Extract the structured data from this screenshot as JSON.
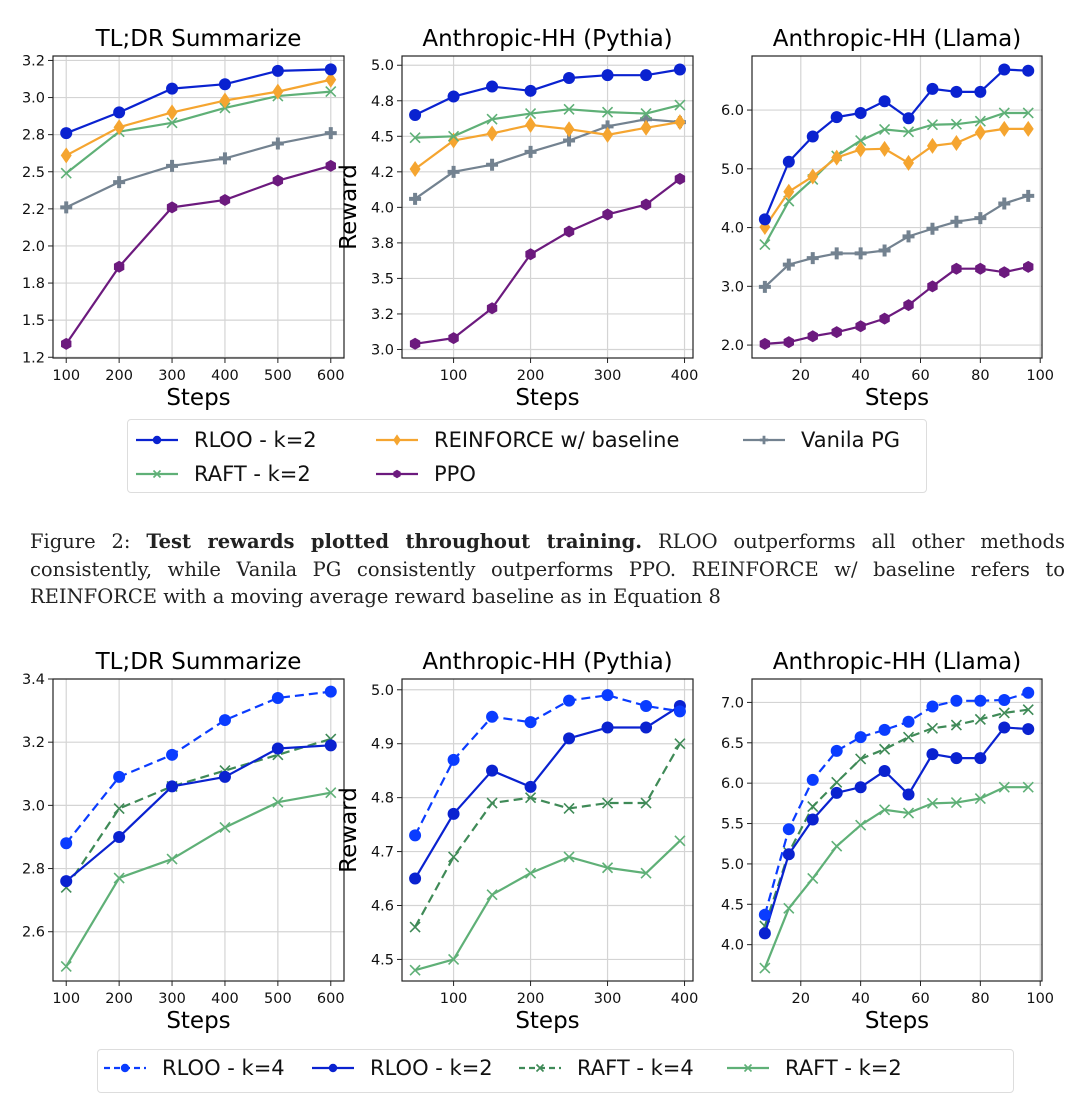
{
  "figure": {
    "caption_label": "Figure 2:",
    "caption_bold": "Test rewards plotted throughout training.",
    "caption_text": "RLOO outperforms all other methods consistently, while Vanila PG consistently outperforms PPO. REINFORCE w/ baseline refers to REINFORCE with a moving average reward baseline as in Equation 8"
  },
  "series_styles": {
    "RLOO - k=2": {
      "color": "#0a22d0",
      "marker": "circle",
      "dash": false
    },
    "REINFORCE w/ baseline": {
      "color": "#f5a530",
      "marker": "diamond",
      "dash": false
    },
    "Vanila PG": {
      "color": "#738290",
      "marker": "plus",
      "dash": false
    },
    "RAFT - k=2": {
      "color": "#5fb077",
      "marker": "x",
      "dash": false
    },
    "PPO": {
      "color": "#6c1a7e",
      "marker": "pentagon",
      "dash": false
    },
    "RLOO - k=4": {
      "color": "#0a3cff",
      "marker": "circle",
      "dash": true
    },
    "RAFT - k=4": {
      "color": "#3f8a57",
      "marker": "x",
      "dash": true
    }
  },
  "legends": [
    {
      "items": [
        "RLOO - k=2",
        "REINFORCE w/ baseline",
        "Vanila PG",
        "RAFT - k=2",
        "PPO"
      ]
    },
    {
      "items": [
        "RLOO - k=4",
        "RLOO - k=2",
        "RAFT - k=4",
        "RAFT - k=2"
      ]
    }
  ],
  "chart_data": [
    {
      "type": "line",
      "title": "TL;DR Summarize",
      "xlabel": "Steps",
      "ylabel": "",
      "xlim": [
        75,
        625
      ],
      "ylim": [
        1.245,
        3.28
      ],
      "grid": true,
      "xticks": [
        100,
        200,
        300,
        400,
        500,
        600
      ],
      "yticks": [
        1.25,
        1.5,
        1.75,
        2.0,
        2.25,
        2.5,
        2.75,
        3.0,
        3.25
      ],
      "ytick_labels": [
        "1.2",
        "1.5",
        "1.8",
        "2.0",
        "2.2",
        "2.5",
        "2.8",
        "3.0",
        "3.2"
      ],
      "x": [
        100,
        200,
        300,
        400,
        500,
        600
      ],
      "series": [
        {
          "name": "Vanila PG",
          "values": [
            2.26,
            2.43,
            2.54,
            2.59,
            2.69,
            2.76
          ]
        },
        {
          "name": "PPO",
          "values": [
            1.34,
            1.86,
            2.26,
            2.31,
            2.44,
            2.54
          ]
        },
        {
          "name": "RAFT - k=2",
          "values": [
            2.49,
            2.77,
            2.83,
            2.93,
            3.01,
            3.04
          ]
        },
        {
          "name": "REINFORCE w/ baseline",
          "values": [
            2.61,
            2.8,
            2.9,
            2.98,
            3.04,
            3.12
          ]
        },
        {
          "name": "RLOO - k=2",
          "values": [
            2.76,
            2.9,
            3.06,
            3.09,
            3.18,
            3.19
          ]
        }
      ]
    },
    {
      "type": "line",
      "title": "Anthropic-HH (Pythia)",
      "xlabel": "Steps",
      "ylabel": "Reward",
      "xlim": [
        33,
        411
      ],
      "ylim": [
        2.94,
        5.065
      ],
      "grid": true,
      "xticks": [
        100,
        200,
        300,
        400
      ],
      "yticks": [
        3.0,
        3.25,
        3.5,
        3.75,
        4.0,
        4.25,
        4.5,
        4.75,
        5.0
      ],
      "ytick_labels": [
        "3.0",
        "3.2",
        "3.5",
        "3.8",
        "4.0",
        "4.2",
        "4.5",
        "4.8",
        "5.0"
      ],
      "x": [
        50,
        100,
        150,
        200,
        250,
        300,
        350,
        394
      ],
      "series": [
        {
          "name": "Vanila PG",
          "values": [
            4.06,
            4.25,
            4.3,
            4.39,
            4.47,
            4.57,
            4.62,
            4.6
          ]
        },
        {
          "name": "PPO",
          "values": [
            3.04,
            3.08,
            3.29,
            3.67,
            3.83,
            3.95,
            4.02,
            4.2
          ]
        },
        {
          "name": "REINFORCE w/ baseline",
          "values": [
            4.27,
            4.47,
            4.52,
            4.58,
            4.55,
            4.51,
            4.56,
            4.6
          ]
        },
        {
          "name": "RAFT - k=2",
          "values": [
            4.49,
            4.5,
            4.62,
            4.66,
            4.69,
            4.67,
            4.66,
            4.72
          ]
        },
        {
          "name": "RLOO - k=2",
          "values": [
            4.65,
            4.78,
            4.85,
            4.82,
            4.91,
            4.93,
            4.93,
            4.97
          ]
        }
      ]
    },
    {
      "type": "line",
      "title": "Anthropic-HH (Llama)",
      "xlabel": "Steps",
      "ylabel": "",
      "xlim": [
        3.7,
        100.6
      ],
      "ylim": [
        1.78,
        6.92
      ],
      "grid": true,
      "xticks": [
        20,
        40,
        60,
        80,
        100
      ],
      "yticks": [
        2.0,
        3.0,
        4.0,
        5.0,
        6.0
      ],
      "ytick_labels": [
        "2.0",
        "3.0",
        "4.0",
        "5.0",
        "6.0"
      ],
      "x": [
        8,
        16,
        24,
        32,
        40,
        48,
        56,
        64,
        72,
        80,
        88,
        96
      ],
      "series": [
        {
          "name": "Vanila PG",
          "values": [
            2.99,
            3.37,
            3.48,
            3.56,
            3.56,
            3.61,
            3.85,
            3.98,
            4.1,
            4.16,
            4.41,
            4.54
          ]
        },
        {
          "name": "PPO",
          "values": [
            2.02,
            2.05,
            2.15,
            2.22,
            2.32,
            2.45,
            2.68,
            3.0,
            3.3,
            3.3,
            3.24,
            3.33
          ]
        },
        {
          "name": "RAFT - k=2",
          "values": [
            3.71,
            4.45,
            4.82,
            5.22,
            5.48,
            5.67,
            5.63,
            5.75,
            5.76,
            5.81,
            5.95,
            5.95
          ]
        },
        {
          "name": "REINFORCE w/ baseline",
          "values": [
            4.01,
            4.61,
            4.87,
            5.19,
            5.33,
            5.34,
            5.1,
            5.39,
            5.44,
            5.62,
            5.68,
            5.68
          ]
        },
        {
          "name": "RLOO - k=2",
          "values": [
            4.14,
            5.12,
            5.55,
            5.88,
            5.95,
            6.15,
            5.86,
            6.36,
            6.31,
            6.31,
            6.69,
            6.67
          ]
        }
      ]
    },
    {
      "type": "line",
      "title": "TL;DR Summarize",
      "xlabel": "Steps",
      "ylabel": "",
      "xlim": [
        75,
        625
      ],
      "ylim": [
        2.444,
        3.4
      ],
      "grid": true,
      "xticks": [
        100,
        200,
        300,
        400,
        500,
        600
      ],
      "yticks": [
        2.6,
        2.8,
        3.0,
        3.2,
        3.4
      ],
      "ytick_labels": [
        "2.6",
        "2.8",
        "3.0",
        "3.2",
        "3.4"
      ],
      "x": [
        100,
        200,
        300,
        400,
        500,
        600
      ],
      "series": [
        {
          "name": "RAFT - k=2",
          "values": [
            2.49,
            2.77,
            2.83,
            2.93,
            3.01,
            3.04
          ]
        },
        {
          "name": "RAFT - k=4",
          "values": [
            2.74,
            2.99,
            3.06,
            3.11,
            3.16,
            3.21
          ]
        },
        {
          "name": "RLOO - k=2",
          "values": [
            2.76,
            2.9,
            3.06,
            3.09,
            3.18,
            3.19
          ]
        },
        {
          "name": "RLOO - k=4",
          "values": [
            2.88,
            3.09,
            3.16,
            3.27,
            3.34,
            3.36
          ]
        }
      ]
    },
    {
      "type": "line",
      "title": "Anthropic-HH (Pythia)",
      "xlabel": "Steps",
      "ylabel": "Reward",
      "xlim": [
        33,
        411
      ],
      "ylim": [
        4.46,
        5.02
      ],
      "grid": true,
      "xticks": [
        100,
        200,
        300,
        400
      ],
      "yticks": [
        4.5,
        4.6,
        4.7,
        4.8,
        4.9,
        5.0
      ],
      "ytick_labels": [
        "4.5",
        "4.6",
        "4.7",
        "4.8",
        "4.9",
        "5.0"
      ],
      "x": [
        50,
        100,
        150,
        200,
        250,
        300,
        350,
        394
      ],
      "series": [
        {
          "name": "RAFT - k=2",
          "values": [
            4.48,
            4.5,
            4.62,
            4.66,
            4.69,
            4.67,
            4.66,
            4.72
          ]
        },
        {
          "name": "RAFT - k=4",
          "values": [
            4.56,
            4.69,
            4.79,
            4.8,
            4.78,
            4.79,
            4.79,
            4.9
          ]
        },
        {
          "name": "RLOO - k=2",
          "values": [
            4.65,
            4.77,
            4.85,
            4.82,
            4.91,
            4.93,
            4.93,
            4.97
          ]
        },
        {
          "name": "RLOO - k=4",
          "values": [
            4.73,
            4.87,
            4.95,
            4.94,
            4.98,
            4.99,
            4.97,
            4.96
          ]
        }
      ]
    },
    {
      "type": "line",
      "title": "Anthropic-HH (Llama)",
      "xlabel": "Steps",
      "ylabel": "",
      "xlim": [
        3.7,
        100.6
      ],
      "ylim": [
        3.55,
        7.29
      ],
      "grid": true,
      "xticks": [
        20,
        40,
        60,
        80,
        100
      ],
      "yticks": [
        4.0,
        4.5,
        5.0,
        5.5,
        6.0,
        6.5,
        7.0
      ],
      "ytick_labels": [
        "4.0",
        "4.5",
        "5.0",
        "5.5",
        "6.0",
        "6.5",
        "7.0"
      ],
      "x": [
        8,
        16,
        24,
        32,
        40,
        48,
        56,
        64,
        72,
        80,
        88,
        96
      ],
      "series": [
        {
          "name": "RAFT - k=2",
          "values": [
            3.71,
            4.45,
            4.82,
            5.22,
            5.48,
            5.67,
            5.63,
            5.75,
            5.76,
            5.81,
            5.95,
            5.95
          ]
        },
        {
          "name": "RAFT - k=4",
          "values": [
            4.23,
            5.14,
            5.71,
            6.01,
            6.3,
            6.42,
            6.57,
            6.68,
            6.72,
            6.79,
            6.87,
            6.91
          ]
        },
        {
          "name": "RLOO - k=2",
          "values": [
            4.14,
            5.12,
            5.55,
            5.88,
            5.95,
            6.15,
            5.86,
            6.36,
            6.31,
            6.31,
            6.69,
            6.67
          ]
        },
        {
          "name": "RLOO - k=4",
          "values": [
            4.37,
            5.43,
            6.04,
            6.4,
            6.57,
            6.66,
            6.76,
            6.95,
            7.02,
            7.02,
            7.03,
            7.12
          ]
        }
      ]
    }
  ]
}
